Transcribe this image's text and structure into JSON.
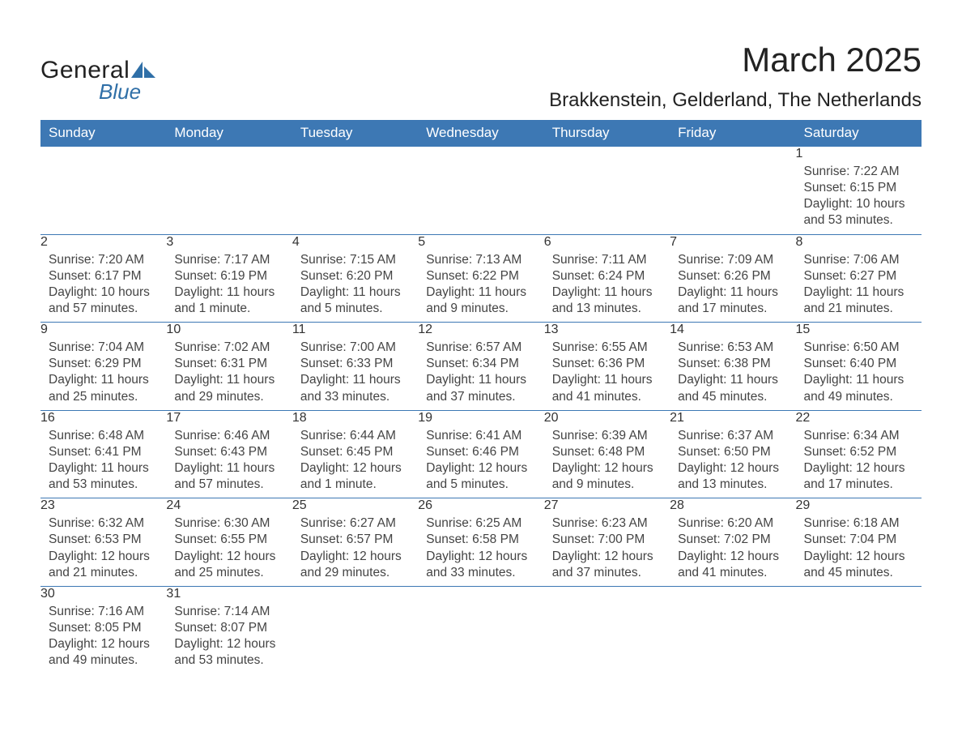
{
  "logo": {
    "general": "General",
    "blue": "Blue",
    "sail_color": "#2f6fa7"
  },
  "header": {
    "month_title": "March 2025",
    "location": "Brakkenstein, Gelderland, The Netherlands"
  },
  "style": {
    "header_bg": "#3d78b4",
    "header_text": "#ffffff",
    "daynum_bg": "#eeeeee",
    "border_color": "#3d78b4",
    "body_text": "#444444",
    "page_bg": "#ffffff"
  },
  "day_headers": [
    "Sunday",
    "Monday",
    "Tuesday",
    "Wednesday",
    "Thursday",
    "Friday",
    "Saturday"
  ],
  "weeks": [
    [
      {
        "n": "",
        "sunrise": "",
        "sunset": "",
        "daylight": ""
      },
      {
        "n": "",
        "sunrise": "",
        "sunset": "",
        "daylight": ""
      },
      {
        "n": "",
        "sunrise": "",
        "sunset": "",
        "daylight": ""
      },
      {
        "n": "",
        "sunrise": "",
        "sunset": "",
        "daylight": ""
      },
      {
        "n": "",
        "sunrise": "",
        "sunset": "",
        "daylight": ""
      },
      {
        "n": "",
        "sunrise": "",
        "sunset": "",
        "daylight": ""
      },
      {
        "n": "1",
        "sunrise": "Sunrise: 7:22 AM",
        "sunset": "Sunset: 6:15 PM",
        "daylight": "Daylight: 10 hours and 53 minutes."
      }
    ],
    [
      {
        "n": "2",
        "sunrise": "Sunrise: 7:20 AM",
        "sunset": "Sunset: 6:17 PM",
        "daylight": "Daylight: 10 hours and 57 minutes."
      },
      {
        "n": "3",
        "sunrise": "Sunrise: 7:17 AM",
        "sunset": "Sunset: 6:19 PM",
        "daylight": "Daylight: 11 hours and 1 minute."
      },
      {
        "n": "4",
        "sunrise": "Sunrise: 7:15 AM",
        "sunset": "Sunset: 6:20 PM",
        "daylight": "Daylight: 11 hours and 5 minutes."
      },
      {
        "n": "5",
        "sunrise": "Sunrise: 7:13 AM",
        "sunset": "Sunset: 6:22 PM",
        "daylight": "Daylight: 11 hours and 9 minutes."
      },
      {
        "n": "6",
        "sunrise": "Sunrise: 7:11 AM",
        "sunset": "Sunset: 6:24 PM",
        "daylight": "Daylight: 11 hours and 13 minutes."
      },
      {
        "n": "7",
        "sunrise": "Sunrise: 7:09 AM",
        "sunset": "Sunset: 6:26 PM",
        "daylight": "Daylight: 11 hours and 17 minutes."
      },
      {
        "n": "8",
        "sunrise": "Sunrise: 7:06 AM",
        "sunset": "Sunset: 6:27 PM",
        "daylight": "Daylight: 11 hours and 21 minutes."
      }
    ],
    [
      {
        "n": "9",
        "sunrise": "Sunrise: 7:04 AM",
        "sunset": "Sunset: 6:29 PM",
        "daylight": "Daylight: 11 hours and 25 minutes."
      },
      {
        "n": "10",
        "sunrise": "Sunrise: 7:02 AM",
        "sunset": "Sunset: 6:31 PM",
        "daylight": "Daylight: 11 hours and 29 minutes."
      },
      {
        "n": "11",
        "sunrise": "Sunrise: 7:00 AM",
        "sunset": "Sunset: 6:33 PM",
        "daylight": "Daylight: 11 hours and 33 minutes."
      },
      {
        "n": "12",
        "sunrise": "Sunrise: 6:57 AM",
        "sunset": "Sunset: 6:34 PM",
        "daylight": "Daylight: 11 hours and 37 minutes."
      },
      {
        "n": "13",
        "sunrise": "Sunrise: 6:55 AM",
        "sunset": "Sunset: 6:36 PM",
        "daylight": "Daylight: 11 hours and 41 minutes."
      },
      {
        "n": "14",
        "sunrise": "Sunrise: 6:53 AM",
        "sunset": "Sunset: 6:38 PM",
        "daylight": "Daylight: 11 hours and 45 minutes."
      },
      {
        "n": "15",
        "sunrise": "Sunrise: 6:50 AM",
        "sunset": "Sunset: 6:40 PM",
        "daylight": "Daylight: 11 hours and 49 minutes."
      }
    ],
    [
      {
        "n": "16",
        "sunrise": "Sunrise: 6:48 AM",
        "sunset": "Sunset: 6:41 PM",
        "daylight": "Daylight: 11 hours and 53 minutes."
      },
      {
        "n": "17",
        "sunrise": "Sunrise: 6:46 AM",
        "sunset": "Sunset: 6:43 PM",
        "daylight": "Daylight: 11 hours and 57 minutes."
      },
      {
        "n": "18",
        "sunrise": "Sunrise: 6:44 AM",
        "sunset": "Sunset: 6:45 PM",
        "daylight": "Daylight: 12 hours and 1 minute."
      },
      {
        "n": "19",
        "sunrise": "Sunrise: 6:41 AM",
        "sunset": "Sunset: 6:46 PM",
        "daylight": "Daylight: 12 hours and 5 minutes."
      },
      {
        "n": "20",
        "sunrise": "Sunrise: 6:39 AM",
        "sunset": "Sunset: 6:48 PM",
        "daylight": "Daylight: 12 hours and 9 minutes."
      },
      {
        "n": "21",
        "sunrise": "Sunrise: 6:37 AM",
        "sunset": "Sunset: 6:50 PM",
        "daylight": "Daylight: 12 hours and 13 minutes."
      },
      {
        "n": "22",
        "sunrise": "Sunrise: 6:34 AM",
        "sunset": "Sunset: 6:52 PM",
        "daylight": "Daylight: 12 hours and 17 minutes."
      }
    ],
    [
      {
        "n": "23",
        "sunrise": "Sunrise: 6:32 AM",
        "sunset": "Sunset: 6:53 PM",
        "daylight": "Daylight: 12 hours and 21 minutes."
      },
      {
        "n": "24",
        "sunrise": "Sunrise: 6:30 AM",
        "sunset": "Sunset: 6:55 PM",
        "daylight": "Daylight: 12 hours and 25 minutes."
      },
      {
        "n": "25",
        "sunrise": "Sunrise: 6:27 AM",
        "sunset": "Sunset: 6:57 PM",
        "daylight": "Daylight: 12 hours and 29 minutes."
      },
      {
        "n": "26",
        "sunrise": "Sunrise: 6:25 AM",
        "sunset": "Sunset: 6:58 PM",
        "daylight": "Daylight: 12 hours and 33 minutes."
      },
      {
        "n": "27",
        "sunrise": "Sunrise: 6:23 AM",
        "sunset": "Sunset: 7:00 PM",
        "daylight": "Daylight: 12 hours and 37 minutes."
      },
      {
        "n": "28",
        "sunrise": "Sunrise: 6:20 AM",
        "sunset": "Sunset: 7:02 PM",
        "daylight": "Daylight: 12 hours and 41 minutes."
      },
      {
        "n": "29",
        "sunrise": "Sunrise: 6:18 AM",
        "sunset": "Sunset: 7:04 PM",
        "daylight": "Daylight: 12 hours and 45 minutes."
      }
    ],
    [
      {
        "n": "30",
        "sunrise": "Sunrise: 7:16 AM",
        "sunset": "Sunset: 8:05 PM",
        "daylight": "Daylight: 12 hours and 49 minutes."
      },
      {
        "n": "31",
        "sunrise": "Sunrise: 7:14 AM",
        "sunset": "Sunset: 8:07 PM",
        "daylight": "Daylight: 12 hours and 53 minutes."
      },
      {
        "n": "",
        "sunrise": "",
        "sunset": "",
        "daylight": ""
      },
      {
        "n": "",
        "sunrise": "",
        "sunset": "",
        "daylight": ""
      },
      {
        "n": "",
        "sunrise": "",
        "sunset": "",
        "daylight": ""
      },
      {
        "n": "",
        "sunrise": "",
        "sunset": "",
        "daylight": ""
      },
      {
        "n": "",
        "sunrise": "",
        "sunset": "",
        "daylight": ""
      }
    ]
  ]
}
